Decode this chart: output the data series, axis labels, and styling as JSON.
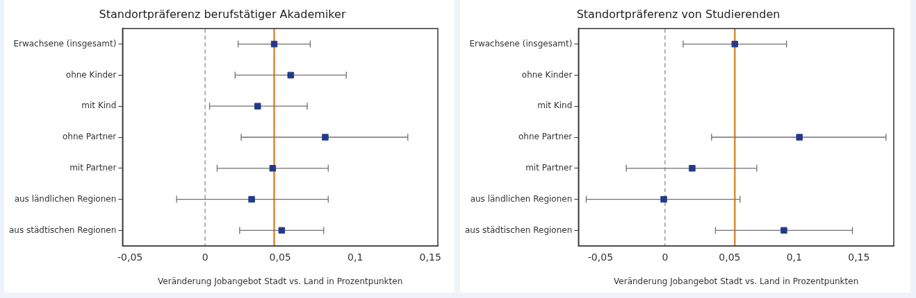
{
  "chart_data": [
    {
      "type": "scatter",
      "orientation": "horizontal",
      "title": "Standortpräferenz berufstätiger Akademiker",
      "xlabel": "Veränderung Jobangebot Stadt vs. Land in Prozentpunkten",
      "categories": [
        "Erwachsene (insgesamt)",
        "ohne Kinder",
        "mit Kind",
        "ohne Partner",
        "mit Partner",
        "aus ländlichen Regionen",
        "aus städtischen Regionen"
      ],
      "values": [
        0.046,
        0.057,
        0.035,
        0.08,
        0.045,
        0.031,
        0.051
      ],
      "errors": [
        [
          0.022,
          0.07
        ],
        [
          0.02,
          0.094
        ],
        [
          0.003,
          0.068
        ],
        [
          0.024,
          0.135
        ],
        [
          0.008,
          0.082
        ],
        [
          -0.019,
          0.082
        ],
        [
          0.023,
          0.079
        ]
      ],
      "color": "#233a8a",
      "marker": "square",
      "grid": false,
      "legend": false,
      "xlim": [
        -0.055,
        0.155
      ],
      "xticks": [
        {
          "value": -0.05,
          "label": "-0,05"
        },
        0,
        {
          "value": 0.05,
          "label": "0,05"
        },
        {
          "value": 0.1,
          "label": "0,1"
        },
        {
          "value": 0.15,
          "label": "0,15"
        }
      ],
      "ref_lines": [
        {
          "axis": "x",
          "value": 0,
          "color": "#808080",
          "line_style": "dashed"
        },
        {
          "axis": "x",
          "value": 0.046,
          "color": "#d98a2e",
          "line_style": "solid"
        }
      ]
    },
    {
      "type": "scatter",
      "orientation": "horizontal",
      "title": "Standortpräferenz von Studierenden",
      "xlabel": "Veränderung Jobangebot Stadt vs. Land in Prozentpunkten",
      "categories": [
        "Erwachsene (insgesamt)",
        "ohne Kinder",
        "mit Kind",
        "ohne Partner",
        "mit Partner",
        "aus ländlichen Regionen",
        "aus städtischen Regionen"
      ],
      "values": [
        0.054,
        null,
        null,
        0.104,
        0.021,
        -0.001,
        0.092
      ],
      "errors": [
        [
          0.014,
          0.094
        ],
        null,
        null,
        [
          0.036,
          0.171
        ],
        [
          -0.03,
          0.071
        ],
        [
          -0.061,
          0.058
        ],
        [
          0.039,
          0.145
        ]
      ],
      "color": "#233a8a",
      "marker": "square",
      "grid": false,
      "legend": false,
      "xlim": [
        -0.067,
        0.177
      ],
      "xticks": [
        {
          "value": -0.05,
          "label": "-0,05"
        },
        0,
        {
          "value": 0.05,
          "label": "0,05"
        },
        {
          "value": 0.1,
          "label": "0,1"
        },
        {
          "value": 0.15,
          "label": "0,15"
        }
      ],
      "ref_lines": [
        {
          "axis": "x",
          "value": 0,
          "color": "#808080",
          "line_style": "dashed"
        },
        {
          "axis": "x",
          "value": 0.054,
          "color": "#d98a2e",
          "line_style": "solid"
        }
      ]
    }
  ]
}
